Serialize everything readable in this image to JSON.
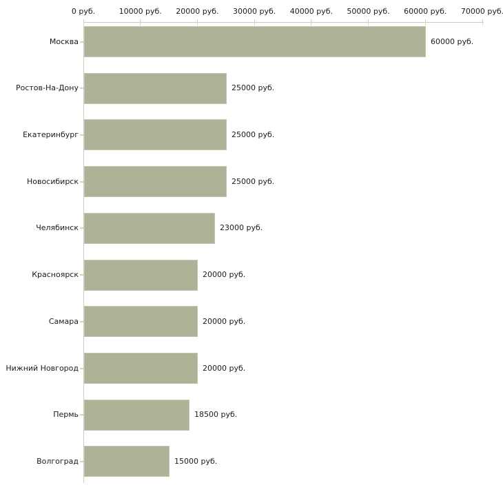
{
  "chart_data": {
    "type": "bar",
    "orientation": "horizontal",
    "title": "",
    "unit": "руб.",
    "categories": [
      "Москва",
      "Ростов-На-Дону",
      "Екатеринбург",
      "Новосибирск",
      "Челябинск",
      "Красноярск",
      "Самара",
      "Нижний Новгород",
      "Пермь",
      "Волгоград"
    ],
    "values": [
      60000,
      25000,
      25000,
      25000,
      23000,
      20000,
      20000,
      20000,
      18500,
      15000
    ],
    "value_labels": [
      "60000 руб.",
      "25000 руб.",
      "25000 руб.",
      "25000 руб.",
      "23000 руб.",
      "20000 руб.",
      "20000 руб.",
      "20000 руб.",
      "18500 руб.",
      "15000 руб."
    ],
    "x_axis": {
      "position": "top",
      "min": 0,
      "max": 70000,
      "ticks": [
        0,
        10000,
        20000,
        30000,
        40000,
        50000,
        60000,
        70000
      ],
      "tick_labels": [
        "0 руб.",
        "10000 руб.",
        "20000 руб.",
        "30000 руб.",
        "40000 руб.",
        "50000 руб.",
        "60000 руб.",
        "70000 руб."
      ]
    },
    "grid": false,
    "legend": false,
    "colors": {
      "bar_fill": "#adb396",
      "bar_border": "#c2c6b0",
      "axis_line": "#ccccc6",
      "tick_mark": "#d8d4ac",
      "text": "#1a1a1a",
      "background": "#ffffff"
    }
  }
}
